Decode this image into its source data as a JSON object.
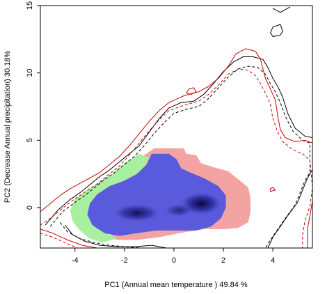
{
  "chart_data": {
    "type": "niche-overlap-density-plot",
    "xlabel": "PC1 (Annual mean temperature ) 49.84 %",
    "ylabel": "PC2 (Decrease Annual precipitation) 30.18%",
    "xlim": [
      -5.4,
      5.6
    ],
    "ylim": [
      -3.0,
      15.0
    ],
    "x_ticks": [
      -4,
      -2,
      0,
      2,
      4
    ],
    "y_ticks": [
      0,
      5,
      10,
      15
    ],
    "colors": {
      "red_only": "#f4a3a3",
      "green_only": "#a8f0a0",
      "overlap": "#5a5adc",
      "overlap_dark": "#0a0a55",
      "contour_black": "#000000",
      "contour_red": "#cc0000"
    },
    "regions": [
      {
        "role": "red_only",
        "points": [
          [
            -0.8,
            4.4
          ],
          [
            0.4,
            4.4
          ],
          [
            0.5,
            4.0
          ],
          [
            0.9,
            3.9
          ],
          [
            1.1,
            3.3
          ],
          [
            1.6,
            3.0
          ],
          [
            2.2,
            2.7
          ],
          [
            2.6,
            2.1
          ],
          [
            3.0,
            1.5
          ],
          [
            3.1,
            0.7
          ],
          [
            3.1,
            -0.3
          ],
          [
            3.0,
            -1.1
          ],
          [
            2.6,
            -1.5
          ],
          [
            2.1,
            -1.6
          ],
          [
            1.2,
            -1.6
          ],
          [
            0.2,
            -1.9
          ],
          [
            -0.6,
            -2.2
          ],
          [
            -1.5,
            -2.4
          ],
          [
            -2.2,
            -2.4
          ],
          [
            -2.6,
            -2.3
          ],
          [
            -2.5,
            -1.6
          ],
          [
            -2.4,
            -0.6
          ],
          [
            -2.3,
            0.6
          ],
          [
            -2.1,
            1.8
          ],
          [
            -1.8,
            3.0
          ],
          [
            -1.2,
            3.9
          ]
        ]
      },
      {
        "role": "green_only",
        "points": [
          [
            -1.4,
            4.0
          ],
          [
            -1.0,
            3.7
          ],
          [
            -1.2,
            3.0
          ],
          [
            -1.5,
            2.4
          ],
          [
            -2.0,
            2.0
          ],
          [
            -2.6,
            1.6
          ],
          [
            -3.0,
            1.0
          ],
          [
            -3.3,
            0.3
          ],
          [
            -3.4,
            -0.4
          ],
          [
            -3.2,
            -1.1
          ],
          [
            -2.8,
            -1.8
          ],
          [
            -2.3,
            -2.3
          ],
          [
            -2.9,
            -2.6
          ],
          [
            -3.4,
            -2.3
          ],
          [
            -3.8,
            -1.7
          ],
          [
            -4.1,
            -1.0
          ],
          [
            -4.2,
            -0.2
          ],
          [
            -4.0,
            0.6
          ],
          [
            -3.5,
            1.3
          ],
          [
            -3.0,
            1.9
          ],
          [
            -2.5,
            2.5
          ],
          [
            -2.0,
            3.3
          ]
        ]
      },
      {
        "role": "overlap",
        "points": [
          [
            -0.9,
            4.0
          ],
          [
            -0.2,
            4.0
          ],
          [
            0.1,
            3.6
          ],
          [
            0.3,
            2.9
          ],
          [
            0.8,
            2.5
          ],
          [
            1.2,
            2.2
          ],
          [
            1.8,
            1.6
          ],
          [
            2.1,
            0.9
          ],
          [
            2.1,
            0.0
          ],
          [
            1.9,
            -0.8
          ],
          [
            1.5,
            -1.4
          ],
          [
            0.9,
            -1.7
          ],
          [
            0.1,
            -1.7
          ],
          [
            -0.7,
            -1.7
          ],
          [
            -1.5,
            -1.9
          ],
          [
            -2.2,
            -2.1
          ],
          [
            -2.8,
            -1.9
          ],
          [
            -3.3,
            -1.3
          ],
          [
            -3.5,
            -0.5
          ],
          [
            -3.4,
            0.3
          ],
          [
            -3.1,
            1.0
          ],
          [
            -2.6,
            1.6
          ],
          [
            -2.0,
            2.0
          ],
          [
            -1.5,
            2.5
          ],
          [
            -1.1,
            3.2
          ]
        ]
      }
    ],
    "density_cores": [
      {
        "x": 1.1,
        "y": 0.3,
        "rx": 0.9,
        "ry": 0.9,
        "intensity": 1.0
      },
      {
        "x": -1.5,
        "y": -0.4,
        "rx": 1.0,
        "ry": 0.7,
        "intensity": 0.85
      },
      {
        "x": 0.2,
        "y": -0.2,
        "rx": 0.6,
        "ry": 0.5,
        "intensity": 0.6
      }
    ],
    "contours": [
      {
        "name": "black solid",
        "color": "#000000",
        "dashed": false,
        "points": [
          [
            -5.2,
            -1.3
          ],
          [
            -4.7,
            -0.2
          ],
          [
            -4.2,
            0.6
          ],
          [
            -3.8,
            1.1
          ],
          [
            -3.4,
            1.7
          ],
          [
            -3.0,
            2.3
          ],
          [
            -2.6,
            2.8
          ],
          [
            -2.2,
            3.4
          ],
          [
            -1.8,
            4.0
          ],
          [
            -1.4,
            4.6
          ],
          [
            -1.0,
            5.6
          ],
          [
            -0.6,
            6.6
          ],
          [
            -0.2,
            7.4
          ],
          [
            0.3,
            7.8
          ],
          [
            0.8,
            7.9
          ],
          [
            1.2,
            8.4
          ],
          [
            1.6,
            9.2
          ],
          [
            2.0,
            10.1
          ],
          [
            2.4,
            10.8
          ],
          [
            2.8,
            11.2
          ],
          [
            3.2,
            11.2
          ],
          [
            3.6,
            11.0
          ],
          [
            3.8,
            10.4
          ],
          [
            4.0,
            9.6
          ],
          [
            4.2,
            9.0
          ],
          [
            4.4,
            8.2
          ],
          [
            4.6,
            7.0
          ],
          [
            4.9,
            5.9
          ],
          [
            5.3,
            5.3
          ],
          [
            5.6,
            5.2
          ],
          [
            5.6,
            2.8
          ],
          [
            5.4,
            2.2
          ],
          [
            5.2,
            1.3
          ],
          [
            5.0,
            0.4
          ],
          [
            4.6,
            -0.6
          ],
          [
            4.3,
            -1.4
          ],
          [
            4.0,
            -2.2
          ],
          [
            3.8,
            -3.0
          ]
        ]
      },
      {
        "name": "black dashed",
        "color": "#000000",
        "dashed": true,
        "points": [
          [
            -5.0,
            -1.4
          ],
          [
            -4.5,
            -0.3
          ],
          [
            -4.0,
            0.4
          ],
          [
            -3.6,
            0.9
          ],
          [
            -3.2,
            1.5
          ],
          [
            -2.8,
            2.1
          ],
          [
            -2.4,
            2.6
          ],
          [
            -2.0,
            3.2
          ],
          [
            -1.6,
            3.8
          ],
          [
            -1.2,
            4.6
          ],
          [
            -0.8,
            5.5
          ],
          [
            -0.4,
            6.3
          ],
          [
            0.0,
            7.0
          ],
          [
            0.5,
            7.3
          ],
          [
            1.0,
            7.5
          ],
          [
            1.4,
            8.1
          ],
          [
            1.8,
            8.9
          ],
          [
            2.2,
            9.7
          ],
          [
            2.6,
            10.3
          ],
          [
            3.0,
            10.5
          ],
          [
            3.4,
            10.4
          ],
          [
            3.7,
            9.9
          ],
          [
            3.9,
            9.2
          ],
          [
            4.1,
            8.6
          ],
          [
            4.3,
            7.8
          ],
          [
            4.5,
            6.8
          ],
          [
            4.8,
            5.7
          ],
          [
            5.2,
            5.0
          ],
          [
            5.5,
            4.8
          ],
          [
            5.5,
            2.6
          ],
          [
            5.3,
            2.0
          ],
          [
            5.1,
            1.1
          ],
          [
            4.9,
            0.2
          ],
          [
            4.5,
            -0.8
          ],
          [
            4.2,
            -1.6
          ],
          [
            3.9,
            -2.4
          ],
          [
            3.7,
            -3.0
          ]
        ]
      },
      {
        "name": "red solid",
        "color": "#cc0000",
        "dashed": false,
        "points": [
          [
            -5.4,
            -0.3
          ],
          [
            -5.0,
            0.3
          ],
          [
            -4.6,
            0.9
          ],
          [
            -4.2,
            1.4
          ],
          [
            -3.8,
            1.8
          ],
          [
            -3.4,
            2.2
          ],
          [
            -3.0,
            2.6
          ],
          [
            -2.6,
            3.2
          ],
          [
            -2.2,
            3.8
          ],
          [
            -1.8,
            4.6
          ],
          [
            -1.4,
            5.5
          ],
          [
            -1.0,
            6.4
          ],
          [
            -0.6,
            7.2
          ],
          [
            -0.2,
            7.8
          ],
          [
            0.4,
            8.3
          ],
          [
            1.0,
            8.6
          ],
          [
            1.4,
            9.0
          ],
          [
            1.8,
            9.6
          ],
          [
            2.2,
            10.5
          ],
          [
            2.5,
            11.4
          ],
          [
            2.9,
            11.8
          ],
          [
            3.3,
            11.6
          ],
          [
            3.5,
            11.0
          ],
          [
            3.6,
            10.3
          ],
          [
            3.7,
            9.6
          ],
          [
            3.9,
            8.8
          ],
          [
            4.1,
            8.0
          ],
          [
            4.2,
            6.8
          ],
          [
            4.3,
            5.8
          ],
          [
            4.5,
            5.2
          ],
          [
            4.9,
            4.9
          ],
          [
            5.3,
            5.0
          ],
          [
            5.6,
            4.8
          ],
          [
            5.6,
            0.5
          ],
          [
            5.5,
            -0.6
          ],
          [
            5.4,
            -1.6
          ],
          [
            5.4,
            -3.0
          ]
        ]
      },
      {
        "name": "red dashed",
        "color": "#cc0000",
        "dashed": true,
        "points": [
          [
            -5.4,
            -1.3
          ],
          [
            -5.0,
            -0.8
          ],
          [
            -4.6,
            -0.2
          ],
          [
            -4.2,
            0.4
          ],
          [
            -3.8,
            0.9
          ],
          [
            -3.4,
            1.4
          ],
          [
            -3.0,
            1.9
          ],
          [
            -2.6,
            2.5
          ],
          [
            -2.2,
            3.1
          ],
          [
            -1.8,
            3.9
          ],
          [
            -1.4,
            4.8
          ],
          [
            -1.0,
            5.7
          ],
          [
            -0.6,
            6.5
          ],
          [
            -0.2,
            7.2
          ],
          [
            0.4,
            7.6
          ],
          [
            1.0,
            7.9
          ],
          [
            1.4,
            8.4
          ],
          [
            1.8,
            9.1
          ],
          [
            2.2,
            9.9
          ],
          [
            2.6,
            10.3
          ],
          [
            3.0,
            10.2
          ],
          [
            3.3,
            9.8
          ],
          [
            3.5,
            9.2
          ],
          [
            3.7,
            8.5
          ],
          [
            3.9,
            7.7
          ],
          [
            4.0,
            6.6
          ],
          [
            4.2,
            5.6
          ],
          [
            4.4,
            4.9
          ],
          [
            4.8,
            4.3
          ],
          [
            5.2,
            4.0
          ],
          [
            5.5,
            3.5
          ],
          [
            5.6,
            1.5
          ],
          [
            5.5,
            0.1
          ],
          [
            5.3,
            -1.0
          ],
          [
            5.2,
            -2.0
          ],
          [
            5.2,
            -3.0
          ]
        ]
      },
      {
        "name": "red solid lower loop",
        "color": "#cc0000",
        "dashed": false,
        "points": [
          [
            -5.4,
            -1.6
          ],
          [
            -4.9,
            -1.9
          ],
          [
            -4.3,
            -2.4
          ],
          [
            -3.7,
            -2.8
          ],
          [
            -3.1,
            -3.0
          ],
          [
            -2.5,
            -3.0
          ]
        ]
      },
      {
        "name": "red dashed lower loop",
        "color": "#cc0000",
        "dashed": true,
        "points": [
          [
            -5.4,
            -1.9
          ],
          [
            -4.9,
            -2.2
          ],
          [
            -4.4,
            -2.6
          ],
          [
            -3.9,
            -3.0
          ]
        ]
      },
      {
        "name": "black lower loop",
        "color": "#000000",
        "dashed": false,
        "points": [
          [
            -4.4,
            -1.3
          ],
          [
            -4.1,
            -2.0
          ],
          [
            -3.6,
            -2.5
          ],
          [
            -3.0,
            -2.8
          ],
          [
            -2.3,
            -2.9
          ],
          [
            -1.6,
            -2.9
          ],
          [
            -0.9,
            -2.8
          ],
          [
            -0.3,
            -3.0
          ]
        ]
      },
      {
        "name": "black dashed lower loop",
        "color": "#000000",
        "dashed": true,
        "points": [
          [
            -4.6,
            -1.1
          ],
          [
            -4.3,
            -1.8
          ],
          [
            -3.8,
            -2.3
          ],
          [
            -3.2,
            -2.6
          ],
          [
            -2.6,
            -2.8
          ],
          [
            -2.0,
            -2.9
          ],
          [
            -1.3,
            -3.0
          ]
        ]
      },
      {
        "name": "black top-right island",
        "color": "#000000",
        "dashed": false,
        "points": [
          [
            4.0,
            14.8
          ],
          [
            4.3,
            14.5
          ],
          [
            4.7,
            14.9
          ]
        ]
      },
      {
        "name": "black small loop",
        "color": "#000000",
        "dashed": false,
        "points": [
          [
            4.0,
            13.4
          ],
          [
            4.3,
            13.6
          ],
          [
            4.4,
            13.1
          ],
          [
            4.3,
            12.8
          ],
          [
            4.0,
            12.7
          ],
          [
            3.9,
            13.0
          ],
          [
            4.0,
            13.4
          ]
        ]
      },
      {
        "name": "red small loop",
        "color": "#cc0000",
        "dashed": false,
        "points": [
          [
            0.6,
            8.8
          ],
          [
            0.8,
            8.9
          ],
          [
            0.9,
            8.6
          ],
          [
            0.7,
            8.4
          ],
          [
            0.5,
            8.5
          ],
          [
            0.6,
            8.8
          ]
        ]
      },
      {
        "name": "red island",
        "color": "#cc0000",
        "dashed": false,
        "points": [
          [
            3.9,
            1.4
          ],
          [
            4.0,
            1.5
          ],
          [
            4.1,
            1.3
          ],
          [
            3.9,
            1.2
          ],
          [
            3.9,
            1.4
          ]
        ]
      }
    ]
  }
}
